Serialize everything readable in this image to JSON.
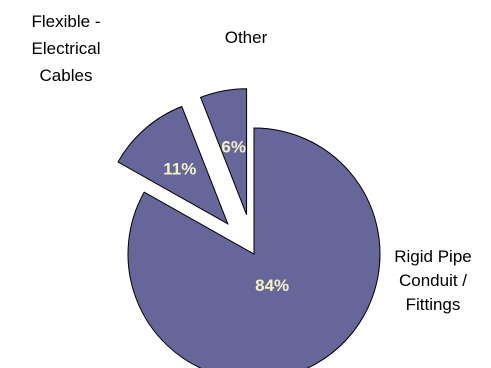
{
  "chart_data": {
    "type": "pie",
    "exploded": true,
    "slice_color": "#66669a",
    "slice_stroke": "#000000",
    "percent_label_color": "#f2f2c2",
    "slices": [
      {
        "name": "Rigid Pipe Conduit / Fittings",
        "label_lines": [
          "Rigid Pipe",
          "Conduit /",
          "Fittings"
        ],
        "value": 84,
        "percent_label": "84%"
      },
      {
        "name": "Flexible - Electrical Cables",
        "label_lines": [
          "Flexible -",
          "Electrical",
          "Cables"
        ],
        "value": 11,
        "percent_label": "11%"
      },
      {
        "name": "Other",
        "label_lines": [
          "Other"
        ],
        "value": 6,
        "percent_label": "6%"
      }
    ]
  }
}
